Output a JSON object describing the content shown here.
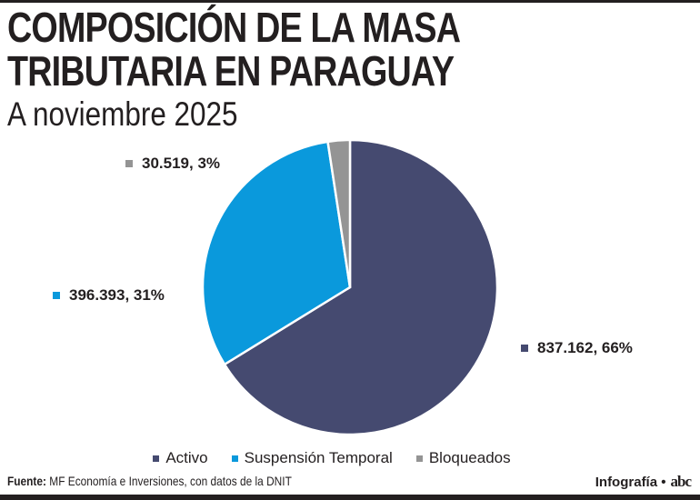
{
  "title_line1": "COMPOSICIÓN DE LA MASA",
  "title_line2": "TRIBUTARIA EN PARAGUAY",
  "subtitle": "A noviembre 2025",
  "chart_data": {
    "type": "pie",
    "start_angle": "12 o'clock, clockwise",
    "slices": [
      {
        "name": "Activo",
        "value": 837162,
        "label": "837.162, 66%",
        "color": "#454a70"
      },
      {
        "name": "Suspensión Temporal",
        "value": 396393,
        "label": "396.393, 31%",
        "color": "#0a99dc"
      },
      {
        "name": "Bloqueados",
        "value": 30519,
        "label": "30.519, 3%",
        "color": "#949494"
      }
    ],
    "legend_position": "bottom"
  },
  "footer": {
    "source_label": "Fuente:",
    "source_text": "MF Economía e Inversiones, con datos de la DNIT",
    "credit": "Infografía •",
    "logo": "abc"
  }
}
